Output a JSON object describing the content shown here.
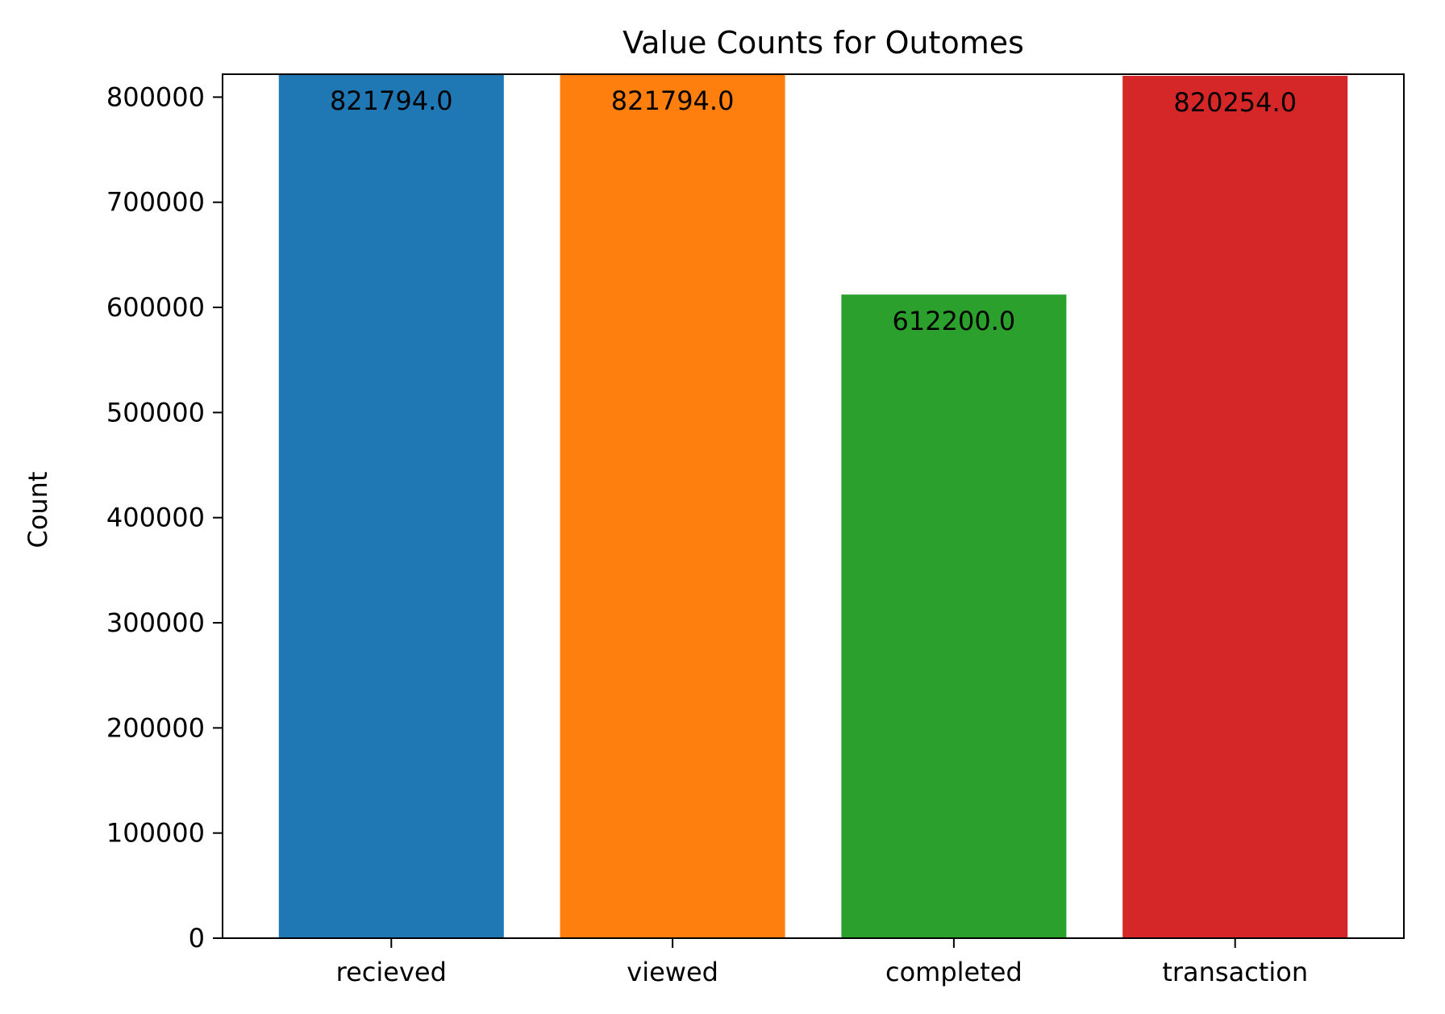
{
  "chart_data": {
    "type": "bar",
    "title": "Value Counts for Outomes",
    "xlabel": "",
    "ylabel": "Count",
    "categories": [
      "recieved",
      "viewed",
      "completed",
      "transaction"
    ],
    "values": [
      821794.0,
      821794.0,
      612200.0,
      820254.0
    ],
    "value_labels": [
      "821794.0",
      "821794.0",
      "612200.0",
      "820254.0"
    ],
    "colors": [
      "#1f77b4",
      "#ff7f0e",
      "#2ca02c",
      "#d62728"
    ],
    "ylim": [
      0,
      821794
    ],
    "yticks": [
      0,
      100000,
      200000,
      300000,
      400000,
      500000,
      600000,
      700000,
      800000
    ],
    "ytick_labels": [
      "0",
      "100000",
      "200000",
      "300000",
      "400000",
      "500000",
      "600000",
      "700000",
      "800000"
    ],
    "grid": false,
    "legend": "none"
  }
}
